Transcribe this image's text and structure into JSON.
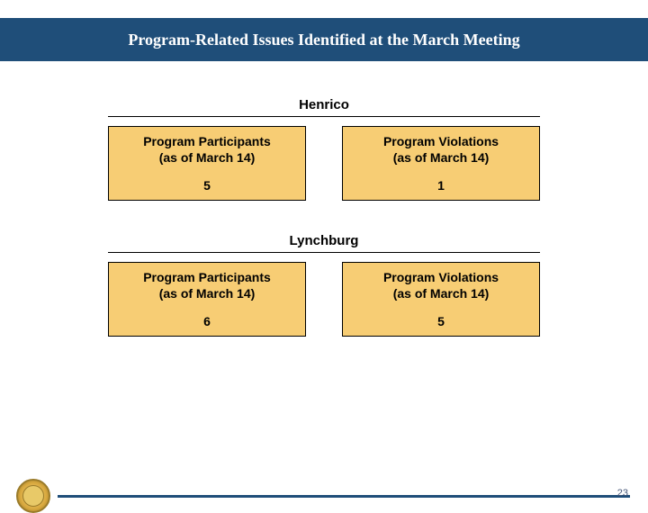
{
  "title": "Program-Related Issues Identified at the March Meeting",
  "sections": [
    {
      "name": "Henrico",
      "left": {
        "label1": "Program Participants",
        "label2": "(as of March 14)",
        "value": "5"
      },
      "right": {
        "label1": "Program Violations",
        "label2": "(as of March 14)",
        "value": "1"
      }
    },
    {
      "name": "Lynchburg",
      "left": {
        "label1": "Program Participants",
        "label2": "(as of March 14)",
        "value": "6"
      },
      "right": {
        "label1": "Program Violations",
        "label2": "(as of March 14)",
        "value": "5"
      }
    }
  ],
  "page_number": "23",
  "colors": {
    "title_bar": "#1f4e79",
    "box_fill": "#f7cd74",
    "box_border": "#000000",
    "footer_line": "#1f4e79",
    "background": "#ffffff"
  }
}
